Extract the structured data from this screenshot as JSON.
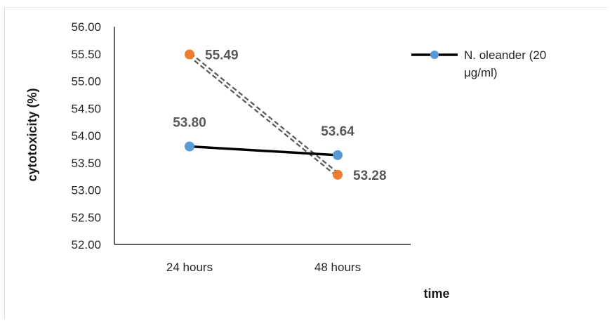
{
  "chart_data": {
    "type": "line",
    "categories": [
      "24 hours",
      "48 hours"
    ],
    "xlabel": "time",
    "ylabel": "cytotoxicity (%)",
    "ylim": [
      52.0,
      56.0
    ],
    "y_ticks": [
      "52.00",
      "52.50",
      "53.00",
      "53.50",
      "54.00",
      "54.50",
      "55.00",
      "55.50",
      "56.00"
    ],
    "grid": false,
    "legend_position": "right",
    "series": [
      {
        "name": "N. oleander (20 μg/ml)",
        "values": [
          53.8,
          53.64
        ],
        "value_labels": [
          "53.80",
          "53.64"
        ],
        "line_color": "#000000",
        "line_style": "solid",
        "marker_color": "#5b9bd5"
      },
      {
        "values": [
          55.49,
          53.28
        ],
        "value_labels": [
          "55.49",
          "53.28"
        ],
        "line_color": "#595959",
        "line_style": "dashed-double",
        "marker_color": "#ed7d31"
      }
    ]
  },
  "legend": {
    "line1": "N. oleander (20",
    "line2": "μg/ml)"
  }
}
